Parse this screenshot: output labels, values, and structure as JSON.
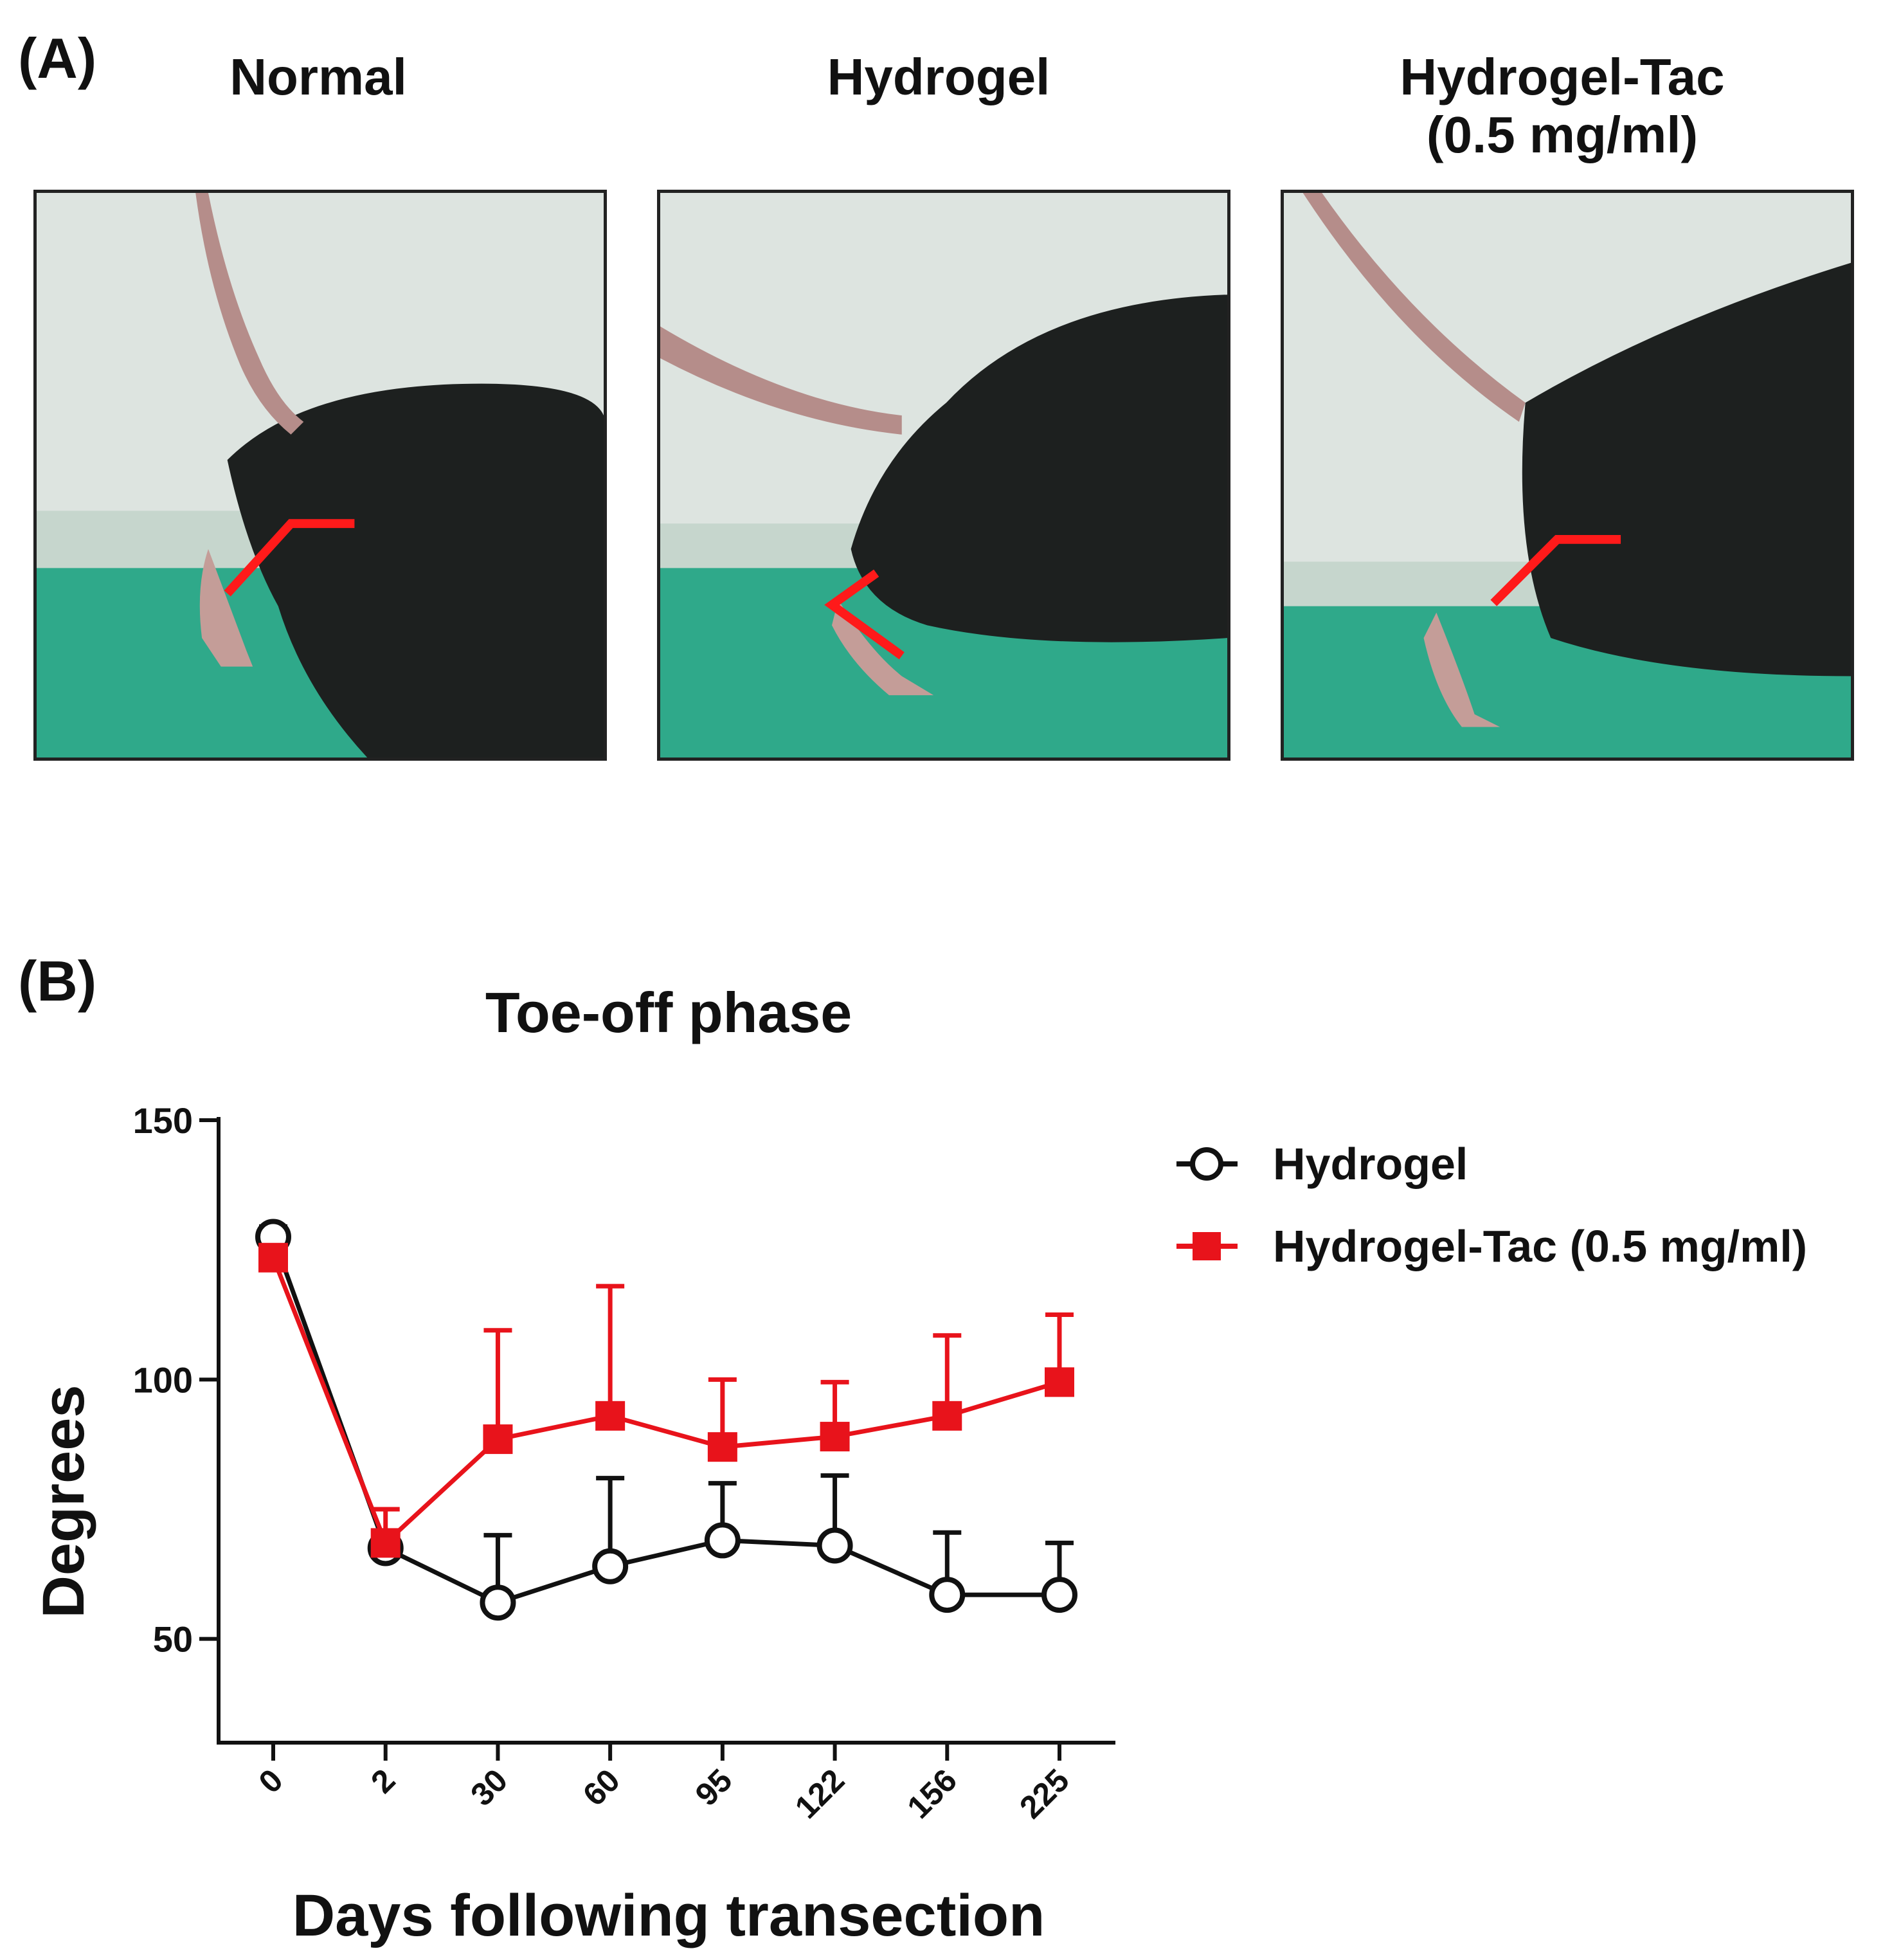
{
  "panel_a": {
    "label": "(A)",
    "photos": [
      {
        "title": "Normal"
      },
      {
        "title": "Hydrogel"
      },
      {
        "title_line1": "Hydrogel-Tac",
        "title_line2": "(0.5 mg/ml)"
      }
    ]
  },
  "panel_b": {
    "label": "(B)"
  },
  "colors": {
    "hydrogel": "#111111",
    "hydrogel_tac": "#e8131b",
    "angle_mark": "#ff1a1a",
    "floor": "#2fa98a",
    "wall": "#dfe6e2",
    "mouse": "#1c1f1e",
    "tail": "#b58d8a"
  },
  "chart_data": {
    "type": "line",
    "title": "Toe-off phase",
    "xlabel": "Days following transection",
    "ylabel": "Degrees",
    "categories": [
      "0",
      "2",
      "30",
      "60",
      "95",
      "122",
      "156",
      "225"
    ],
    "ylim": [
      30,
      150
    ],
    "yticks": [
      50,
      100,
      150
    ],
    "grid": false,
    "legend_position": "top-right",
    "series": [
      {
        "name": "Hydrogel",
        "marker": "open-circle",
        "color": "#111111",
        "values": [
          127.5,
          67.5,
          57,
          64,
          69,
          68,
          58.5,
          58.5
        ],
        "errors": [
          2,
          1.5,
          13,
          17,
          11,
          13.5,
          12,
          10
        ]
      },
      {
        "name": "Hydrogel-Tac (0.5 mg/ml)",
        "marker": "filled-square",
        "color": "#e8131b",
        "values": [
          123.5,
          68.5,
          88.5,
          93,
          87,
          89,
          93,
          99.5
        ],
        "errors": [
          2,
          6.5,
          21,
          25,
          13,
          10.5,
          15.5,
          13
        ]
      }
    ]
  }
}
